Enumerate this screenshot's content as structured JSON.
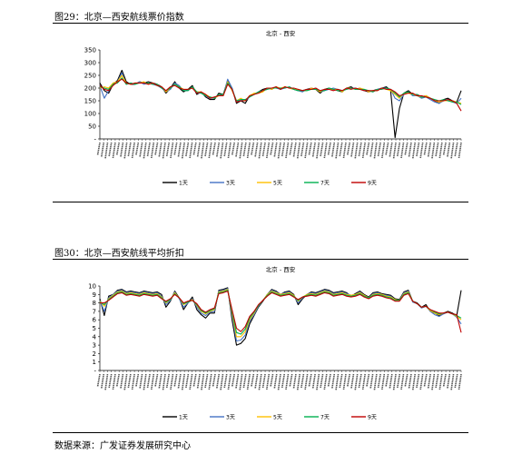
{
  "figures": [
    {
      "caption": "图29：北京—西安航线票价指数",
      "chart_title": "北京 - 西安",
      "legend_prefix": "—"
    },
    {
      "caption": "图30：北京—西安航线平均折扣",
      "chart_title": "北京 - 西安",
      "legend_prefix": "—"
    }
  ],
  "source": "数据来源：广发证券发展研究中心",
  "chart_data": [
    {
      "type": "line",
      "title": "北京 - 西安",
      "ylim": [
        0,
        350
      ],
      "yticks": [
        "-",
        "50",
        "100",
        "150",
        "200",
        "250",
        "300",
        "350"
      ],
      "grid": false,
      "legend_position": "bottom",
      "series": [
        {
          "name": "1天",
          "color": "#000000",
          "values": [
            220,
            190,
            180,
            215,
            230,
            270,
            225,
            215,
            215,
            225,
            220,
            225,
            220,
            215,
            205,
            180,
            200,
            225,
            200,
            185,
            195,
            210,
            175,
            185,
            165,
            155,
            155,
            180,
            175,
            230,
            200,
            140,
            150,
            140,
            170,
            175,
            185,
            195,
            200,
            195,
            205,
            195,
            205,
            200,
            195,
            190,
            190,
            195,
            200,
            195,
            180,
            195,
            200,
            195,
            190,
            185,
            200,
            205,
            195,
            200,
            190,
            185,
            190,
            195,
            200,
            205,
            190,
            5,
            120,
            180,
            190,
            175,
            175,
            165,
            170,
            160,
            150,
            140,
            155,
            160,
            150,
            145,
            190
          ]
        },
        {
          "name": "3天",
          "color": "#4472c4",
          "values": [
            210,
            160,
            190,
            220,
            225,
            260,
            215,
            220,
            215,
            225,
            215,
            220,
            215,
            210,
            200,
            185,
            195,
            220,
            210,
            190,
            190,
            205,
            180,
            180,
            170,
            160,
            160,
            175,
            170,
            235,
            200,
            145,
            155,
            150,
            165,
            175,
            185,
            190,
            195,
            200,
            200,
            195,
            200,
            205,
            195,
            190,
            185,
            195,
            195,
            200,
            185,
            190,
            195,
            200,
            195,
            190,
            195,
            200,
            200,
            195,
            190,
            190,
            185,
            195,
            200,
            200,
            195,
            160,
            150,
            175,
            185,
            170,
            170,
            160,
            165,
            155,
            145,
            140,
            150,
            155,
            145,
            140,
            160
          ]
        },
        {
          "name": "5天",
          "color": "#ffc000",
          "values": [
            200,
            205,
            200,
            220,
            225,
            250,
            220,
            215,
            220,
            220,
            225,
            215,
            220,
            210,
            205,
            185,
            200,
            215,
            205,
            195,
            195,
            200,
            185,
            185,
            175,
            165,
            160,
            170,
            170,
            225,
            190,
            150,
            160,
            150,
            170,
            180,
            180,
            185,
            200,
            195,
            205,
            200,
            205,
            200,
            195,
            195,
            190,
            190,
            200,
            195,
            185,
            195,
            195,
            195,
            195,
            185,
            200,
            200,
            195,
            200,
            195,
            185,
            190,
            190,
            200,
            195,
            190,
            175,
            160,
            180,
            180,
            175,
            170,
            165,
            170,
            160,
            150,
            145,
            150,
            150,
            150,
            145,
            140
          ]
        },
        {
          "name": "7天",
          "color": "#00b050",
          "values": [
            205,
            200,
            195,
            215,
            220,
            240,
            215,
            220,
            215,
            220,
            220,
            220,
            215,
            215,
            200,
            190,
            200,
            215,
            205,
            190,
            190,
            205,
            185,
            180,
            170,
            165,
            160,
            175,
            175,
            220,
            195,
            150,
            155,
            155,
            165,
            175,
            185,
            190,
            195,
            200,
            200,
            200,
            200,
            205,
            195,
            190,
            190,
            190,
            195,
            195,
            190,
            190,
            200,
            195,
            190,
            190,
            195,
            200,
            195,
            195,
            195,
            190,
            185,
            195,
            195,
            200,
            195,
            180,
            165,
            180,
            185,
            175,
            175,
            165,
            165,
            160,
            155,
            150,
            155,
            150,
            145,
            145,
            135
          ]
        },
        {
          "name": "9天",
          "color": "#c00000",
          "values": [
            210,
            195,
            190,
            210,
            225,
            235,
            220,
            215,
            220,
            220,
            220,
            215,
            220,
            210,
            205,
            190,
            205,
            210,
            200,
            195,
            195,
            200,
            180,
            185,
            175,
            160,
            165,
            170,
            170,
            215,
            195,
            145,
            150,
            150,
            170,
            175,
            180,
            190,
            200,
            200,
            205,
            195,
            205,
            200,
            200,
            195,
            190,
            195,
            195,
            200,
            190,
            195,
            195,
            190,
            195,
            190,
            200,
            195,
            200,
            195,
            190,
            190,
            190,
            190,
            200,
            195,
            195,
            185,
            170,
            175,
            180,
            180,
            170,
            170,
            165,
            160,
            150,
            150,
            150,
            155,
            150,
            140,
            110
          ]
        }
      ]
    },
    {
      "type": "line",
      "title": "北京 - 西安",
      "ylim": [
        0,
        10
      ],
      "yticks": [
        "-",
        "1",
        "2",
        "3",
        "4",
        "5",
        "6",
        "7",
        "8",
        "9",
        "10"
      ],
      "grid": false,
      "legend_position": "bottom",
      "series": [
        {
          "name": "1天",
          "color": "#000000",
          "values": [
            8.5,
            6.5,
            8.8,
            9,
            9.5,
            9.6,
            9.3,
            9.4,
            9.3,
            9.2,
            9.4,
            9.3,
            9.2,
            9.3,
            9.0,
            7.5,
            8.2,
            9.4,
            8.6,
            7.2,
            8.0,
            8.7,
            7.2,
            6.6,
            6.2,
            6.8,
            6.8,
            9.5,
            9.6,
            9.8,
            6.0,
            3.0,
            3.2,
            3.8,
            5.5,
            6.5,
            7.5,
            8.2,
            9.0,
            9.6,
            9.4,
            9.0,
            9.3,
            9.4,
            9.0,
            7.8,
            8.5,
            9.0,
            9.3,
            9.2,
            9.4,
            9.6,
            9.5,
            9.2,
            9.3,
            9.4,
            9.2,
            8.8,
            9.1,
            9.4,
            9.0,
            8.7,
            9.2,
            9.3,
            9.1,
            9.0,
            8.9,
            8.5,
            8.4,
            9.3,
            9.5,
            8.2,
            8.0,
            7.5,
            7.8,
            7.0,
            6.8,
            6.5,
            6.8,
            7.0,
            6.8,
            6.5,
            9.5
          ]
        },
        {
          "name": "3天",
          "color": "#4472c4",
          "values": [
            8.3,
            7.0,
            8.6,
            9,
            9.4,
            9.5,
            9.2,
            9.3,
            9.2,
            9.1,
            9.3,
            9.2,
            9.1,
            9.2,
            8.8,
            7.8,
            8.3,
            9.3,
            8.5,
            7.5,
            8.0,
            8.5,
            7.5,
            6.8,
            6.5,
            6.9,
            7.0,
            9.4,
            9.5,
            9.7,
            6.5,
            3.5,
            3.6,
            4.2,
            5.8,
            6.6,
            7.6,
            8.3,
            9.0,
            9.5,
            9.3,
            9.0,
            9.2,
            9.3,
            8.9,
            8.0,
            8.6,
            9.0,
            9.2,
            9.1,
            9.3,
            9.5,
            9.4,
            9.1,
            9.2,
            9.3,
            9.1,
            8.9,
            9.0,
            9.3,
            8.9,
            8.6,
            9.1,
            9.2,
            9.0,
            8.9,
            8.8,
            8.4,
            8.3,
            9.2,
            9.4,
            8.1,
            7.9,
            7.4,
            7.6,
            7.0,
            6.6,
            6.4,
            6.7,
            6.9,
            6.7,
            6.3,
            5.5
          ]
        },
        {
          "name": "5天",
          "color": "#ffc000",
          "values": [
            8.2,
            7.6,
            8.5,
            8.9,
            9.3,
            9.4,
            9.1,
            9.2,
            9.1,
            9.0,
            9.2,
            9.1,
            9.0,
            9.1,
            8.7,
            8.0,
            8.4,
            9.2,
            8.6,
            7.8,
            8.1,
            8.4,
            7.7,
            7.0,
            6.7,
            7.0,
            7.2,
            9.3,
            9.4,
            9.6,
            6.8,
            4.0,
            4.0,
            4.6,
            6.0,
            6.8,
            7.7,
            8.3,
            9.0,
            9.4,
            9.2,
            9.0,
            9.1,
            9.2,
            8.9,
            8.2,
            8.7,
            9.0,
            9.1,
            9.0,
            9.2,
            9.4,
            9.3,
            9.0,
            9.1,
            9.2,
            9.0,
            8.9,
            9.0,
            9.2,
            8.9,
            8.6,
            9.0,
            9.1,
            9.0,
            8.8,
            8.7,
            8.4,
            8.3,
            9.1,
            9.3,
            8.2,
            7.9,
            7.5,
            7.6,
            7.1,
            6.8,
            6.6,
            6.8,
            6.9,
            6.7,
            6.4,
            6.0
          ]
        },
        {
          "name": "7天",
          "color": "#00b050",
          "values": [
            8.1,
            7.8,
            8.4,
            8.8,
            9.2,
            9.3,
            9.0,
            9.1,
            9.0,
            8.9,
            9.1,
            9.0,
            8.9,
            9.0,
            8.6,
            8.1,
            8.4,
            9.1,
            8.6,
            7.9,
            8.1,
            8.3,
            7.8,
            7.1,
            6.8,
            7.1,
            7.3,
            9.2,
            9.3,
            9.5,
            7.0,
            4.5,
            4.3,
            4.9,
            6.2,
            6.9,
            7.7,
            8.3,
            8.9,
            9.3,
            9.1,
            8.9,
            9.0,
            9.1,
            8.8,
            8.3,
            8.7,
            8.9,
            9.0,
            8.9,
            9.1,
            9.3,
            9.2,
            8.9,
            9.0,
            9.1,
            8.9,
            8.8,
            8.9,
            9.1,
            8.8,
            8.6,
            8.9,
            9.0,
            8.9,
            8.7,
            8.6,
            8.3,
            8.3,
            9.0,
            9.2,
            8.2,
            7.9,
            7.5,
            7.6,
            7.2,
            6.9,
            6.7,
            6.8,
            6.9,
            6.7,
            6.5,
            6.2
          ]
        },
        {
          "name": "9天",
          "color": "#c00000",
          "values": [
            8.0,
            8.0,
            8.3,
            8.7,
            9.1,
            9.2,
            8.9,
            9.0,
            8.9,
            8.8,
            9.0,
            8.9,
            8.8,
            8.9,
            8.5,
            8.2,
            8.5,
            9.0,
            8.6,
            8.0,
            8.2,
            8.3,
            7.9,
            7.2,
            6.9,
            7.2,
            7.4,
            9.1,
            9.2,
            9.4,
            7.2,
            5.0,
            4.6,
            5.2,
            6.4,
            7.0,
            7.8,
            8.3,
            8.8,
            9.2,
            9.0,
            8.8,
            8.9,
            9.0,
            8.7,
            8.4,
            8.7,
            8.8,
            8.9,
            8.8,
            9.0,
            9.2,
            9.1,
            8.8,
            8.9,
            9.0,
            8.8,
            8.7,
            8.8,
            9.0,
            8.7,
            8.5,
            8.8,
            8.9,
            8.8,
            8.6,
            8.5,
            8.2,
            8.2,
            8.9,
            9.1,
            8.2,
            7.9,
            7.5,
            7.6,
            7.2,
            7.0,
            6.8,
            6.8,
            6.9,
            6.7,
            6.6,
            4.5
          ]
        }
      ]
    }
  ]
}
